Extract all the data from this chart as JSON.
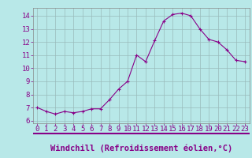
{
  "x": [
    0,
    1,
    2,
    3,
    4,
    5,
    6,
    7,
    8,
    9,
    10,
    11,
    12,
    13,
    14,
    15,
    16,
    17,
    18,
    19,
    20,
    21,
    22,
    23
  ],
  "y": [
    7.0,
    6.7,
    6.5,
    6.7,
    6.6,
    6.7,
    6.9,
    6.9,
    7.6,
    8.4,
    9.0,
    11.0,
    10.5,
    12.1,
    13.6,
    14.1,
    14.2,
    14.0,
    13.0,
    12.2,
    12.0,
    11.4,
    10.6,
    10.5
  ],
  "line_color": "#880088",
  "marker": "+",
  "marker_size": 3,
  "bg_color": "#b8e8e8",
  "grid_color": "#99bbbb",
  "xlabel": "Windchill (Refroidissement éolien,°C)",
  "xlabel_color": "#880088",
  "ylim": [
    5.8,
    14.6
  ],
  "xlim": [
    -0.5,
    23.5
  ],
  "yticks": [
    6,
    7,
    8,
    9,
    10,
    11,
    12,
    13,
    14
  ],
  "xticks": [
    0,
    1,
    2,
    3,
    4,
    5,
    6,
    7,
    8,
    9,
    10,
    11,
    12,
    13,
    14,
    15,
    16,
    17,
    18,
    19,
    20,
    21,
    22,
    23
  ],
  "tick_fontsize": 6.5,
  "xlabel_fontsize": 7.5,
  "separator_color": "#880088",
  "spine_color": "#888888"
}
